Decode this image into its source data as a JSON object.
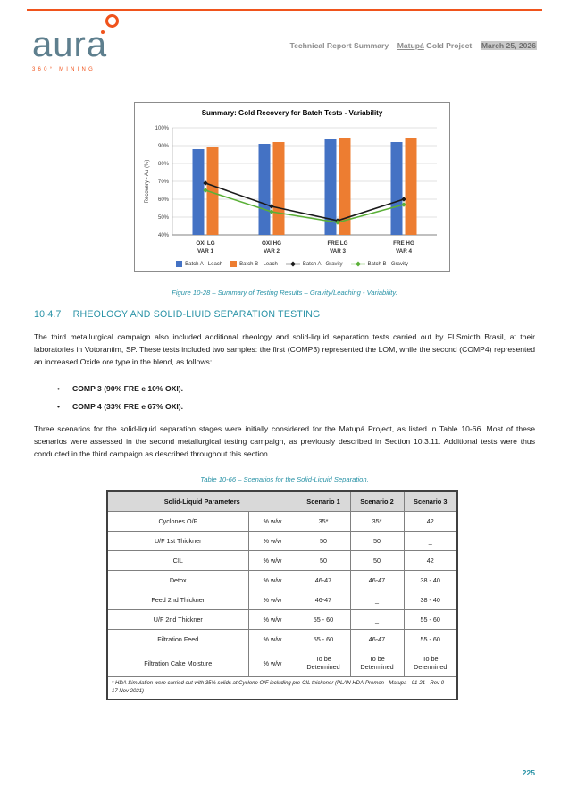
{
  "header": {
    "logo_text": "aura",
    "logo_tagline": "360° MINING",
    "title_prefix": "Technical Report Summary – ",
    "title_matupa": "Matupá",
    "title_mid": " Gold Project – ",
    "title_date": "March 25, 2026"
  },
  "chart_data": {
    "type": "bar",
    "title": "Summary: Gold Recovery for Batch Tests - Variability",
    "ylabel": "Recovery - Au (%)",
    "ylim": [
      40,
      100
    ],
    "ytick_step": 10,
    "grid": true,
    "legend_position": "bottom",
    "categories": [
      [
        "OXI LG",
        "VAR 1"
      ],
      [
        "OXI HG",
        "VAR 2"
      ],
      [
        "FRE LG",
        "VAR 3"
      ],
      [
        "FRE HG",
        "VAR 4"
      ]
    ],
    "series": [
      {
        "name": "Batch A - Leach",
        "type": "bar",
        "color": "#4472C4",
        "values": [
          88,
          91,
          93.5,
          92
        ]
      },
      {
        "name": "Batch B - Leach",
        "type": "bar",
        "color": "#ED7D31",
        "values": [
          89.5,
          92,
          94,
          94
        ]
      },
      {
        "name": "Batch A - Gravity",
        "type": "line",
        "color": "#1a1a1a",
        "values": [
          69,
          56,
          48,
          60
        ]
      },
      {
        "name": "Batch B - Gravity",
        "type": "line",
        "color": "#5BB038",
        "values": [
          65,
          53,
          47,
          57
        ]
      }
    ]
  },
  "figure_caption": "Figure 10-28 – Summary of Testing Results – Gravity/Leaching - Variability.",
  "section": {
    "heading_number": "10.4.7",
    "heading_text": "RHEOLOGY AND SOLID-LIUID SEPARATION TESTING",
    "para1": "The third metallurgical campaign also included additional rheology and solid-liquid separation tests carried out by FLSmidth Brasil, at their laboratories in Votorantim, SP. These tests included two samples: the first (COMP3) represented the LOM, while the second (COMP4) represented an increased Oxide ore type in the blend, as follows:",
    "bullets": [
      "COMP 3 (90% FRE e 10% OXI).",
      "COMP 4 (33% FRE e 67% OXI)."
    ],
    "para2": "Three scenarios for the solid-liquid separation stages were initially considered for the Matupá Project, as listed in Table 10-66. Most of these scenarios were assessed in the second metallurgical testing campaign, as previously described in Section 10.3.11. Additional tests were thus conducted in the third campaign as described throughout this section."
  },
  "table": {
    "caption": "Table 10-66 – Scenarios for the Solid-Liquid Separation.",
    "header": [
      "Solid-Liquid Parameters",
      "Scenario 1",
      "Scenario 2",
      "Scenario 3"
    ],
    "rows": [
      {
        "param": "Cyclones O/F",
        "unit": "% w/w",
        "s1": "35*",
        "s2": "35*",
        "s3": "42"
      },
      {
        "param": "U/F 1st Thickner",
        "unit": "% w/w",
        "s1": "50",
        "s2": "50",
        "s3": "_"
      },
      {
        "param": "CIL",
        "unit": "% w/w",
        "s1": "50",
        "s2": "50",
        "s3": "42"
      },
      {
        "param": "Detox",
        "unit": "% w/w",
        "s1": "46-47",
        "s2": "46-47",
        "s3": "38 - 40"
      },
      {
        "param": "Feed 2nd Thickner",
        "unit": "% w/w",
        "s1": "46-47",
        "s2": "_",
        "s3": "38 - 40"
      },
      {
        "param": "U/F 2nd Thickner",
        "unit": "% w/w",
        "s1": "55 - 60",
        "s2": "_",
        "s3": "55 - 60"
      },
      {
        "param": "Filtration Feed",
        "unit": "% w/w",
        "s1": "55 - 60",
        "s2": "46-47",
        "s3": "55 - 60"
      },
      {
        "param": "Filtration Cake Moisture",
        "unit": "% w/w",
        "s1": "To be Determined",
        "s2": "To be Determined",
        "s3": "To be Determined"
      }
    ],
    "footnote": "* HDA Simulation were carried out with 35% solids at Cyclone O/F including pre-CIL thickener (PLAN HDA-Promon - Matupa - 01-21 - Rev 0 - 17 Nov 2021)"
  },
  "page_number": "225",
  "colors": {
    "accent_teal": "#2892A6",
    "brand_orange": "#F0531C",
    "bar_blue": "#4472C4",
    "bar_orange": "#ED7D31",
    "line_green": "#5BB038",
    "header_gray": "#8C8C8C",
    "table_header_bg": "#D9D9D9"
  }
}
